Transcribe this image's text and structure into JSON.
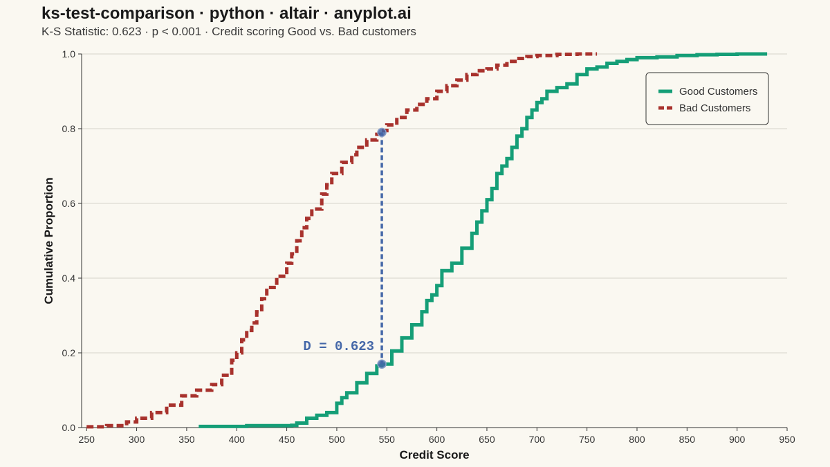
{
  "header": {
    "title": "ks-test-comparison · python · altair · anyplot.ai",
    "subtitle": "K-S Statistic: 0.623 · p < 0.001 · Credit scoring Good vs. Bad customers"
  },
  "chart_data": {
    "type": "line",
    "xlabel": "Credit Score",
    "ylabel": "Cumulative Proportion",
    "xlim": [
      245,
      950
    ],
    "ylim": [
      0,
      1
    ],
    "xticks": [
      250,
      300,
      350,
      400,
      450,
      500,
      550,
      600,
      650,
      700,
      750,
      800,
      850,
      900,
      950
    ],
    "yticks": [
      0.0,
      0.2,
      0.4,
      0.6,
      0.8,
      1.0
    ],
    "ytick_labels": [
      "0.0",
      "0.2",
      "0.4",
      "0.6",
      "0.8",
      "1.0"
    ],
    "grid": "horizontal",
    "legend_position": "top-right",
    "series": [
      {
        "name": "Good Customers",
        "color": "#159E77",
        "style": "solid",
        "points": [
          [
            362,
            0.003
          ],
          [
            410,
            0.005
          ],
          [
            455,
            0.006
          ],
          [
            460,
            0.012
          ],
          [
            470,
            0.025
          ],
          [
            480,
            0.033
          ],
          [
            490,
            0.04
          ],
          [
            500,
            0.065
          ],
          [
            505,
            0.08
          ],
          [
            510,
            0.093
          ],
          [
            520,
            0.12
          ],
          [
            530,
            0.145
          ],
          [
            540,
            0.165
          ],
          [
            545,
            0.17
          ],
          [
            555,
            0.205
          ],
          [
            565,
            0.24
          ],
          [
            575,
            0.275
          ],
          [
            585,
            0.31
          ],
          [
            590,
            0.34
          ],
          [
            595,
            0.355
          ],
          [
            600,
            0.38
          ],
          [
            605,
            0.42
          ],
          [
            615,
            0.44
          ],
          [
            625,
            0.48
          ],
          [
            635,
            0.52
          ],
          [
            640,
            0.55
          ],
          [
            645,
            0.58
          ],
          [
            650,
            0.61
          ],
          [
            655,
            0.64
          ],
          [
            660,
            0.68
          ],
          [
            665,
            0.7
          ],
          [
            670,
            0.72
          ],
          [
            675,
            0.75
          ],
          [
            680,
            0.78
          ],
          [
            685,
            0.8
          ],
          [
            690,
            0.83
          ],
          [
            695,
            0.85
          ],
          [
            700,
            0.87
          ],
          [
            705,
            0.88
          ],
          [
            710,
            0.9
          ],
          [
            720,
            0.91
          ],
          [
            730,
            0.92
          ],
          [
            740,
            0.945
          ],
          [
            750,
            0.96
          ],
          [
            760,
            0.965
          ],
          [
            770,
            0.975
          ],
          [
            780,
            0.98
          ],
          [
            790,
            0.985
          ],
          [
            800,
            0.99
          ],
          [
            820,
            0.992
          ],
          [
            840,
            0.996
          ],
          [
            860,
            0.998
          ],
          [
            880,
            0.999
          ],
          [
            900,
            1.0
          ],
          [
            930,
            1.0
          ]
        ]
      },
      {
        "name": "Bad Customers",
        "color": "#A8322D",
        "style": "dashed",
        "points": [
          [
            250,
            0.002
          ],
          [
            270,
            0.005
          ],
          [
            290,
            0.015
          ],
          [
            300,
            0.025
          ],
          [
            315,
            0.04
          ],
          [
            330,
            0.06
          ],
          [
            345,
            0.085
          ],
          [
            360,
            0.1
          ],
          [
            375,
            0.115
          ],
          [
            385,
            0.14
          ],
          [
            395,
            0.18
          ],
          [
            400,
            0.2
          ],
          [
            405,
            0.235
          ],
          [
            410,
            0.26
          ],
          [
            415,
            0.28
          ],
          [
            420,
            0.31
          ],
          [
            425,
            0.345
          ],
          [
            430,
            0.375
          ],
          [
            440,
            0.405
          ],
          [
            450,
            0.44
          ],
          [
            455,
            0.465
          ],
          [
            460,
            0.5
          ],
          [
            465,
            0.535
          ],
          [
            470,
            0.56
          ],
          [
            475,
            0.585
          ],
          [
            485,
            0.625
          ],
          [
            490,
            0.65
          ],
          [
            495,
            0.68
          ],
          [
            505,
            0.71
          ],
          [
            515,
            0.73
          ],
          [
            520,
            0.75
          ],
          [
            530,
            0.77
          ],
          [
            540,
            0.785
          ],
          [
            545,
            0.795
          ],
          [
            550,
            0.81
          ],
          [
            560,
            0.83
          ],
          [
            570,
            0.85
          ],
          [
            580,
            0.865
          ],
          [
            590,
            0.88
          ],
          [
            600,
            0.9
          ],
          [
            610,
            0.915
          ],
          [
            620,
            0.93
          ],
          [
            630,
            0.945
          ],
          [
            640,
            0.955
          ],
          [
            650,
            0.96
          ],
          [
            660,
            0.97
          ],
          [
            670,
            0.98
          ],
          [
            680,
            0.988
          ],
          [
            690,
            0.993
          ],
          [
            700,
            0.996
          ],
          [
            720,
            0.999
          ],
          [
            740,
            1.0
          ],
          [
            760,
            1.0
          ]
        ]
      }
    ],
    "annotation": {
      "label": "D = 0.623",
      "x": 545,
      "y_low": 0.17,
      "y_high": 0.79,
      "color": "#4467A8"
    }
  }
}
